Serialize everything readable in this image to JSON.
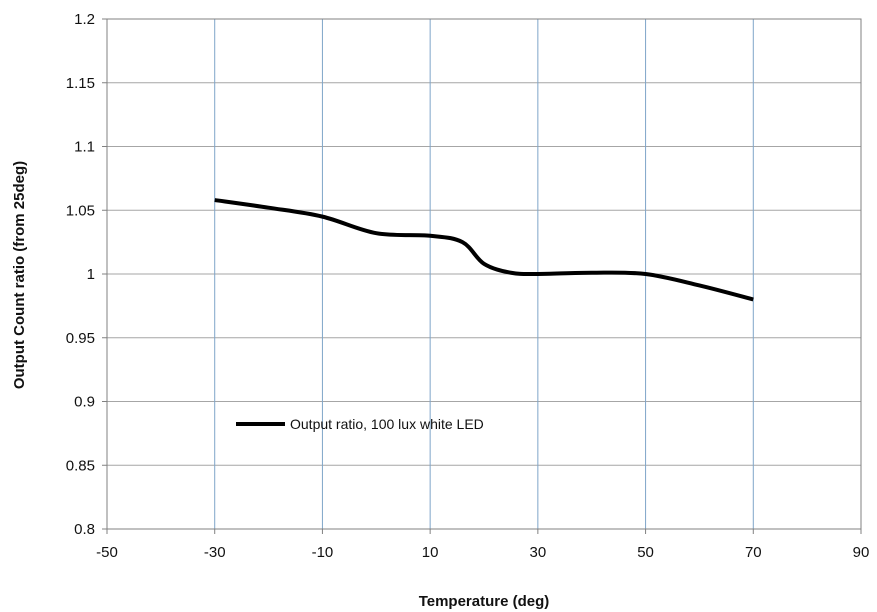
{
  "chart_data": {
    "type": "line",
    "title": "",
    "xlabel": "Temperature (deg)",
    "ylabel": "Output Count ratio (from 25deg)",
    "xlim": [
      -50,
      90
    ],
    "ylim": [
      0.8,
      1.2
    ],
    "x_ticks": [
      "-50",
      "-30",
      "-10",
      "10",
      "30",
      "50",
      "70",
      "90"
    ],
    "y_ticks": [
      "0.8",
      "0.85",
      "0.9",
      "0.95",
      "1",
      "1.05",
      "1.1",
      "1.15",
      "1.2"
    ],
    "grid": true,
    "legend_position": "inside-lower-left",
    "series": [
      {
        "name": "Output ratio, 100 lux white LED",
        "color": "#000000",
        "points": [
          {
            "x": -30,
            "y": 1.058
          },
          {
            "x": -20,
            "y": 1.052
          },
          {
            "x": -10,
            "y": 1.045
          },
          {
            "x": 0,
            "y": 1.032
          },
          {
            "x": 10,
            "y": 1.03
          },
          {
            "x": 16,
            "y": 1.025
          },
          {
            "x": 20,
            "y": 1.008
          },
          {
            "x": 25,
            "y": 1.001
          },
          {
            "x": 30,
            "y": 1.0
          },
          {
            "x": 40,
            "y": 1.001
          },
          {
            "x": 50,
            "y": 1.0
          },
          {
            "x": 60,
            "y": 0.991
          },
          {
            "x": 70,
            "y": 0.98
          }
        ]
      }
    ],
    "colors": {
      "vertical_grid": "#7fa5c9",
      "horizontal_grid": "#a6a6a6",
      "plot_border": "#808080"
    }
  }
}
